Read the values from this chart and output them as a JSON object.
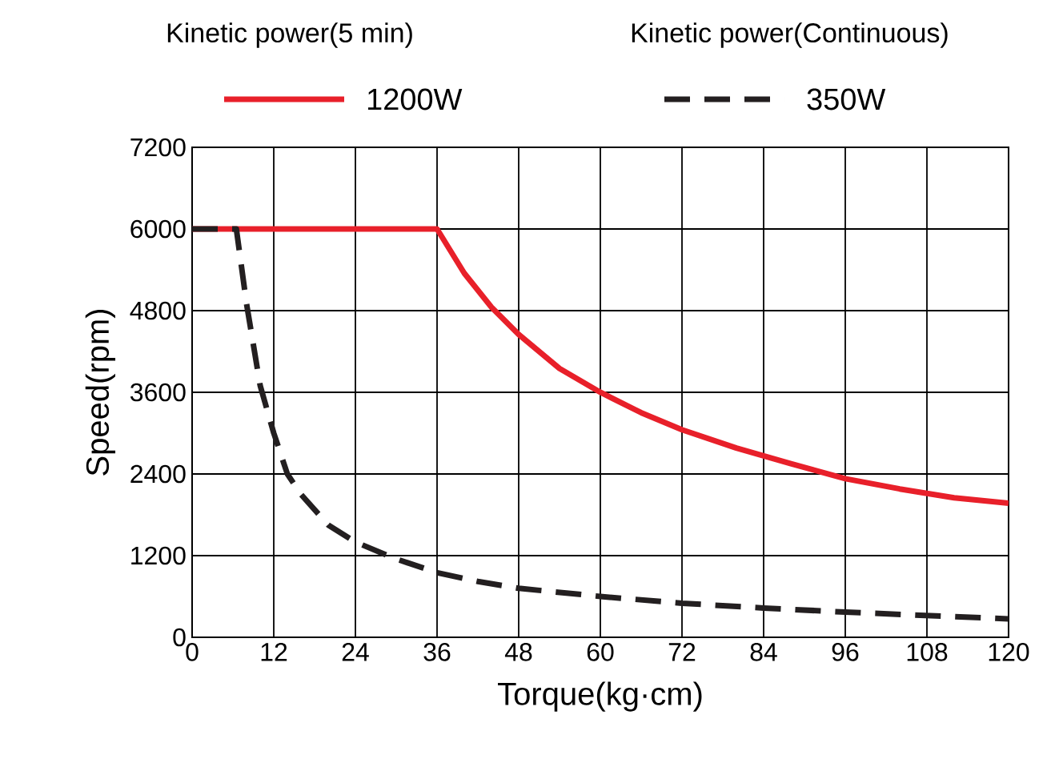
{
  "chart_data": {
    "type": "line",
    "xlabel": "Torque(kg·cm)",
    "ylabel": "Speed(rpm)",
    "annotations": [
      "Kinetic power(5 min)",
      "Kinetic power(Continuous)"
    ],
    "series": [
      {
        "name": "1200W",
        "color": "#e8202a",
        "line_style": "solid",
        "x": [
          0,
          36,
          40,
          44,
          48,
          54,
          60,
          66,
          72,
          80,
          88,
          96,
          104,
          112,
          120
        ],
        "values": [
          6000,
          6000,
          5350,
          4850,
          4450,
          3950,
          3600,
          3300,
          3050,
          2780,
          2550,
          2330,
          2180,
          2050,
          1970
        ]
      },
      {
        "name": "350W",
        "color": "#231f20",
        "line_style": "dashed",
        "x": [
          0,
          6.5,
          8,
          10,
          12,
          14,
          16,
          20,
          24,
          30,
          36,
          42,
          48,
          60,
          72,
          84,
          96,
          108,
          120
        ],
        "values": [
          6000,
          6000,
          4900,
          3700,
          3000,
          2400,
          2100,
          1650,
          1400,
          1150,
          950,
          820,
          720,
          600,
          500,
          430,
          370,
          320,
          270
        ]
      }
    ],
    "xlim": [
      0,
      120
    ],
    "ylim": [
      0,
      7200
    ],
    "xticks": [
      0,
      12,
      24,
      36,
      48,
      60,
      72,
      84,
      96,
      108,
      120
    ],
    "yticks": [
      0,
      1200,
      2400,
      3600,
      4800,
      6000,
      7200
    ],
    "grid": true,
    "legend": "top",
    "marker": "none"
  }
}
